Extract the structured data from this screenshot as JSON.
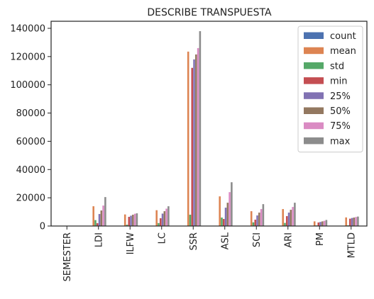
{
  "chart_data": {
    "type": "bar",
    "title": "DESCRIBE TRANSPUESTA",
    "xlabel": "",
    "ylabel": "",
    "categories": [
      "SEMESTER",
      "LDI",
      "ILFW",
      "LC",
      "SSR",
      "ASL",
      "SCI",
      "ARI",
      "PM",
      "MTLD"
    ],
    "ylim": [
      0,
      145000
    ],
    "yticks": [
      0,
      20000,
      40000,
      60000,
      80000,
      100000,
      120000,
      140000
    ],
    "legend_position": "top-right",
    "grid": false,
    "series": [
      {
        "name": "count",
        "color": "#4c72b0",
        "values": [
          200,
          200,
          200,
          200,
          200,
          200,
          200,
          200,
          200,
          200
        ]
      },
      {
        "name": "mean",
        "color": "#dd8452",
        "values": [
          2,
          14000,
          8200,
          11200,
          123500,
          21000,
          10500,
          12000,
          3300,
          6100
        ]
      },
      {
        "name": "std",
        "color": "#55a868",
        "values": [
          1,
          4200,
          900,
          2100,
          8000,
          6000,
          2600,
          2200,
          400,
          500
        ]
      },
      {
        "name": "min",
        "color": "#c44e52",
        "values": [
          1,
          2000,
          6500,
          5500,
          112000,
          5000,
          4500,
          7000,
          2500,
          5200
        ]
      },
      {
        "name": "25%",
        "color": "#8172b3",
        "values": [
          2,
          8500,
          7300,
          8800,
          118000,
          13000,
          7500,
          9500,
          2900,
          5700
        ]
      },
      {
        "name": "50%",
        "color": "#937860",
        "values": [
          3,
          11000,
          8000,
          10500,
          121500,
          16500,
          9500,
          11500,
          3300,
          6000
        ]
      },
      {
        "name": "75%",
        "color": "#da8bc3",
        "values": [
          4,
          14500,
          8700,
          12300,
          126000,
          24000,
          12000,
          13500,
          3700,
          6400
        ]
      },
      {
        "name": "max",
        "color": "#8c8c8c",
        "values": [
          5,
          20500,
          9000,
          14000,
          138000,
          31000,
          15500,
          16500,
          4300,
          6700
        ]
      }
    ]
  }
}
